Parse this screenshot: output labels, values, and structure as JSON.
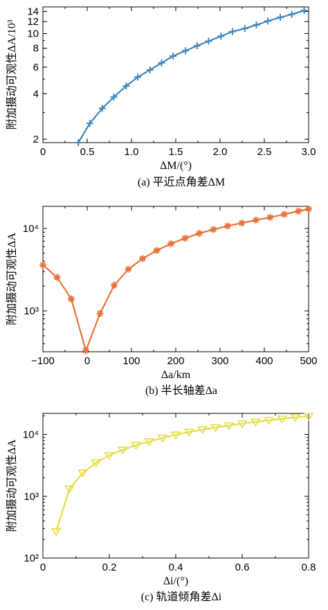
{
  "chart_data": [
    {
      "type": "line",
      "caption": "(a) 平近点角差ΔM",
      "xlabel": "ΔM/(°)",
      "ylabel": "附加摄动可观性ΔA/10³",
      "xscale": "linear",
      "yscale": "log",
      "xlim": [
        0,
        3.0
      ],
      "ylim": [
        1.9,
        15
      ],
      "xticks": [
        0,
        0.5,
        1.0,
        1.5,
        2.0,
        2.5,
        3.0
      ],
      "xtick_labels": [
        "0",
        "0.5",
        "1.0",
        "1.5",
        "2.0",
        "2.5",
        "3.0"
      ],
      "yticks": [
        2,
        4,
        6,
        8,
        10,
        12,
        14
      ],
      "ytick_labels": [
        "2",
        "4",
        "6",
        "8",
        "10",
        "12",
        "14"
      ],
      "marker": "plus",
      "color": "#3f86bd",
      "series": [
        {
          "x": [
            0.4,
            0.53,
            0.67,
            0.8,
            0.94,
            1.07,
            1.21,
            1.34,
            1.47,
            1.61,
            1.74,
            1.87,
            2.01,
            2.14,
            2.28,
            2.41,
            2.54,
            2.68,
            2.81,
            2.95
          ],
          "y": [
            1.9,
            2.55,
            3.2,
            3.8,
            4.5,
            5.15,
            5.75,
            6.4,
            7.1,
            7.7,
            8.3,
            8.9,
            9.6,
            10.3,
            10.8,
            11.4,
            12.1,
            12.8,
            13.4,
            14.2
          ]
        }
      ]
    },
    {
      "type": "line",
      "caption": "(b) 半长轴差Δa",
      "xlabel": "Δa/km",
      "ylabel": "附加摄动可观性ΔA",
      "xscale": "linear",
      "yscale": "log",
      "xlim": [
        -100,
        500
      ],
      "ylim": [
        320,
        18500
      ],
      "xticks": [
        -100,
        0,
        100,
        200,
        300,
        400,
        500
      ],
      "xtick_labels": [
        "−100",
        "0",
        "100",
        "200",
        "300",
        "400",
        "500"
      ],
      "yticks": [
        1000,
        10000
      ],
      "ytick_labels": [
        "10³",
        "10⁴"
      ],
      "marker": "asterisk",
      "color": "#e8733a",
      "series": [
        {
          "x": [
            -100,
            -68,
            -36,
            -3,
            29,
            61,
            93,
            125,
            157,
            189,
            221,
            253,
            285,
            317,
            349,
            381,
            413,
            445,
            477,
            500
          ],
          "y": [
            3600,
            2550,
            1400,
            330,
            930,
            2050,
            3200,
            4300,
            5400,
            6500,
            7600,
            8700,
            9700,
            10700,
            11600,
            12600,
            13600,
            14800,
            16200,
            17200
          ]
        }
      ]
    },
    {
      "type": "line",
      "caption": "(c) 轨道倾角差Δi",
      "xlabel": "Δi/(°)",
      "ylabel": "附加摄动可观性ΔA",
      "xscale": "linear",
      "yscale": "log",
      "xlim": [
        0,
        0.8
      ],
      "ylim": [
        100,
        22000
      ],
      "xticks": [
        0,
        0.2,
        0.4,
        0.6,
        0.8
      ],
      "xtick_labels": [
        "0",
        "0.2",
        "0.4",
        "0.6",
        "0.8"
      ],
      "yticks": [
        100,
        1000,
        10000
      ],
      "ytick_labels": [
        "10²",
        "10³",
        "10⁴"
      ],
      "marker": "triangle-down",
      "color": "#e7dd45",
      "series": [
        {
          "x": [
            0.04,
            0.08,
            0.12,
            0.16,
            0.2,
            0.24,
            0.28,
            0.32,
            0.36,
            0.4,
            0.44,
            0.48,
            0.52,
            0.56,
            0.6,
            0.64,
            0.68,
            0.72,
            0.76,
            0.8
          ],
          "y": [
            270,
            1320,
            2400,
            3500,
            4600,
            5650,
            6700,
            7700,
            8800,
            9900,
            11000,
            12000,
            13000,
            14000,
            15000,
            16000,
            17000,
            18000,
            19000,
            19800
          ]
        }
      ]
    }
  ]
}
